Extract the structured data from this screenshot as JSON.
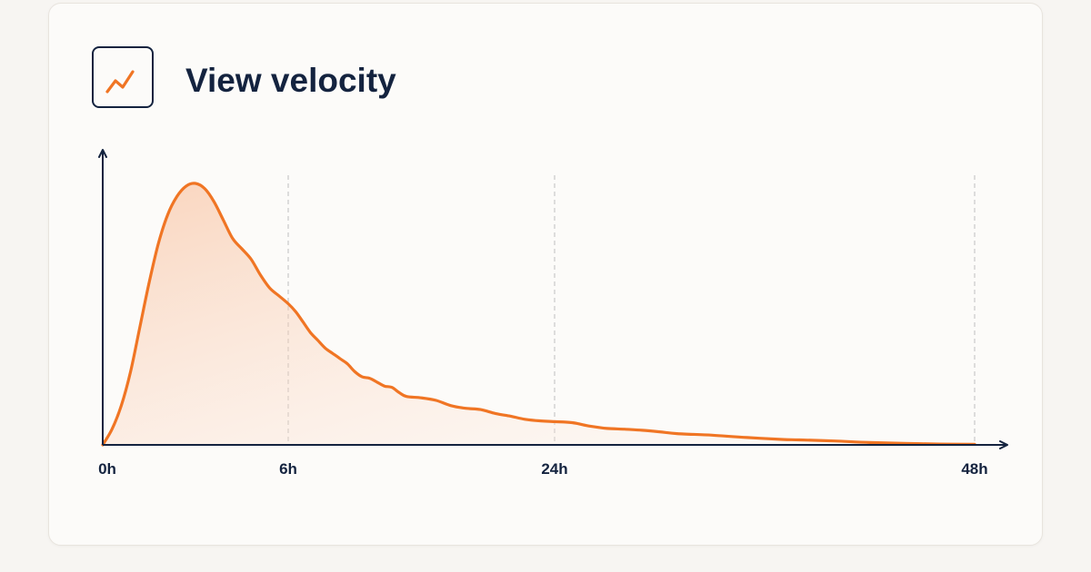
{
  "header": {
    "title": "View velocity",
    "icon": "trending-up-icon"
  },
  "colors": {
    "accent": "#f07524",
    "ink": "#14233f",
    "gridline": "#c9c9c9",
    "fill_top": "#f7b58c",
    "card_bg": "#fcfbf9"
  },
  "chart_data": {
    "type": "area",
    "title": "View velocity",
    "xlabel": "",
    "ylabel": "",
    "x_unit": "hours",
    "xlim": [
      0,
      48
    ],
    "ylim": [
      0,
      1
    ],
    "grid": "vertical dashed at labeled ticks",
    "x_ticks": [
      {
        "value": 0,
        "label": "0h",
        "gridline": false
      },
      {
        "value": 6,
        "label": "6h",
        "gridline": true
      },
      {
        "value": 24,
        "label": "24h",
        "gridline": true
      },
      {
        "value": 48,
        "label": "48h",
        "gridline": true
      }
    ],
    "series": [
      {
        "points": [
          [
            0,
            0.0
          ],
          [
            0.3,
            0.06
          ],
          [
            0.6,
            0.15
          ],
          [
            0.9,
            0.28
          ],
          [
            1.2,
            0.45
          ],
          [
            1.5,
            0.62
          ],
          [
            1.8,
            0.77
          ],
          [
            2.1,
            0.88
          ],
          [
            2.4,
            0.95
          ],
          [
            2.7,
            0.99
          ],
          [
            3.0,
            1.0
          ],
          [
            3.3,
            0.98
          ],
          [
            3.6,
            0.93
          ],
          [
            3.9,
            0.86
          ],
          [
            4.2,
            0.79
          ],
          [
            4.5,
            0.75
          ],
          [
            4.8,
            0.71
          ],
          [
            5.1,
            0.65
          ],
          [
            5.4,
            0.6
          ],
          [
            5.7,
            0.57
          ],
          [
            6.0,
            0.54
          ],
          [
            6.5,
            0.51
          ],
          [
            7.0,
            0.47
          ],
          [
            7.5,
            0.43
          ],
          [
            8.0,
            0.4
          ],
          [
            8.5,
            0.37
          ],
          [
            9.0,
            0.35
          ],
          [
            9.5,
            0.33
          ],
          [
            10.0,
            0.31
          ],
          [
            10.5,
            0.28
          ],
          [
            11.0,
            0.26
          ],
          [
            11.5,
            0.255
          ],
          [
            12.0,
            0.24
          ],
          [
            12.5,
            0.225
          ],
          [
            13.0,
            0.22
          ],
          [
            13.5,
            0.2
          ],
          [
            14.0,
            0.185
          ],
          [
            15.0,
            0.18
          ],
          [
            16.0,
            0.17
          ],
          [
            17.0,
            0.15
          ],
          [
            18.0,
            0.14
          ],
          [
            19.0,
            0.135
          ],
          [
            20.0,
            0.12
          ],
          [
            21.0,
            0.11
          ],
          [
            22.0,
            0.098
          ],
          [
            23.0,
            0.092
          ],
          [
            24.0,
            0.089
          ],
          [
            25.0,
            0.085
          ],
          [
            26.0,
            0.072
          ],
          [
            27.0,
            0.063
          ],
          [
            28.0,
            0.06
          ],
          [
            29.0,
            0.056
          ],
          [
            30.0,
            0.05
          ],
          [
            31.0,
            0.043
          ],
          [
            33.0,
            0.037
          ],
          [
            35.0,
            0.028
          ],
          [
            37.0,
            0.021
          ],
          [
            38.0,
            0.019
          ],
          [
            40.0,
            0.015
          ],
          [
            42.0,
            0.009
          ],
          [
            44.0,
            0.006
          ],
          [
            46.0,
            0.003
          ],
          [
            48.0,
            0.002
          ]
        ]
      }
    ]
  }
}
